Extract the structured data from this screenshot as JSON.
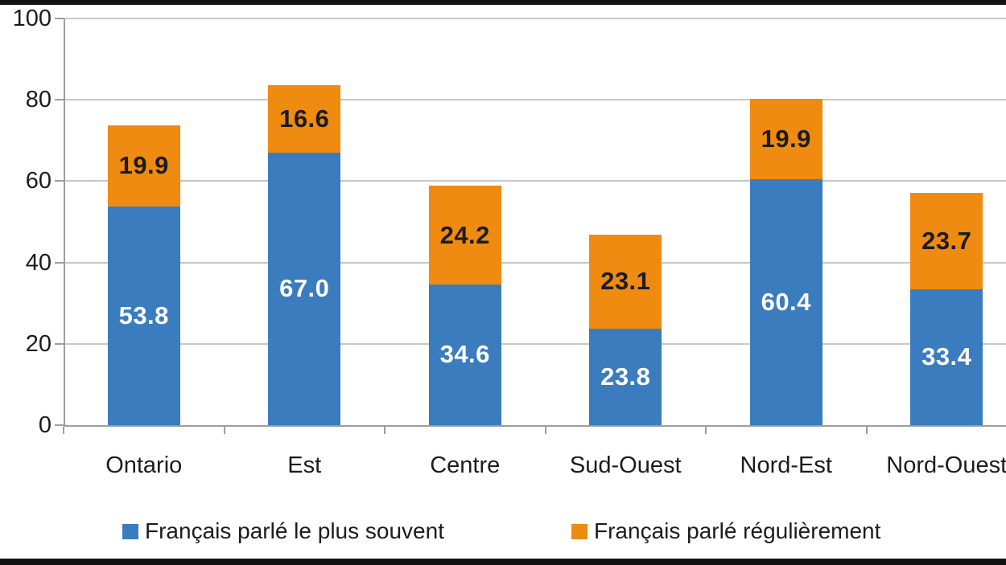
{
  "chart_data": {
    "type": "bar",
    "variant": "stacked",
    "title": "",
    "categories": [
      "Ontario",
      "Est",
      "Centre",
      "Sud-Ouest",
      "Nord-Est",
      "Nord-Ouest"
    ],
    "series": [
      {
        "name": "Français parlé le plus souvent",
        "color": "#3a7cbd",
        "label_color": "#ffffff",
        "values": [
          53.8,
          67.0,
          34.6,
          23.8,
          60.4,
          33.4
        ],
        "value_labels": [
          "53.8",
          "67.0",
          "34.6",
          "23.8",
          "60.4",
          "33.4"
        ]
      },
      {
        "name": "Français parlé régulièrement",
        "color": "#ee8b10",
        "label_color": "#1c1c1c",
        "values": [
          19.9,
          16.6,
          24.2,
          23.1,
          19.9,
          23.7
        ],
        "value_labels": [
          "19.9",
          "16.6",
          "24.2",
          "23.1",
          "19.9",
          "23.7"
        ]
      }
    ],
    "xlabel": "",
    "ylabel": "",
    "ylim": [
      0,
      100
    ],
    "y_ticks": [
      "0",
      "20",
      "40",
      "60",
      "80",
      "100"
    ],
    "grid": true,
    "legend_position": "bottom"
  },
  "colors": {
    "grid_line": "#c6c6c6",
    "axis_line": "#9e9e9e",
    "text": "#1c1c1c",
    "background": "#ffffff",
    "border_strip": "#121212"
  }
}
